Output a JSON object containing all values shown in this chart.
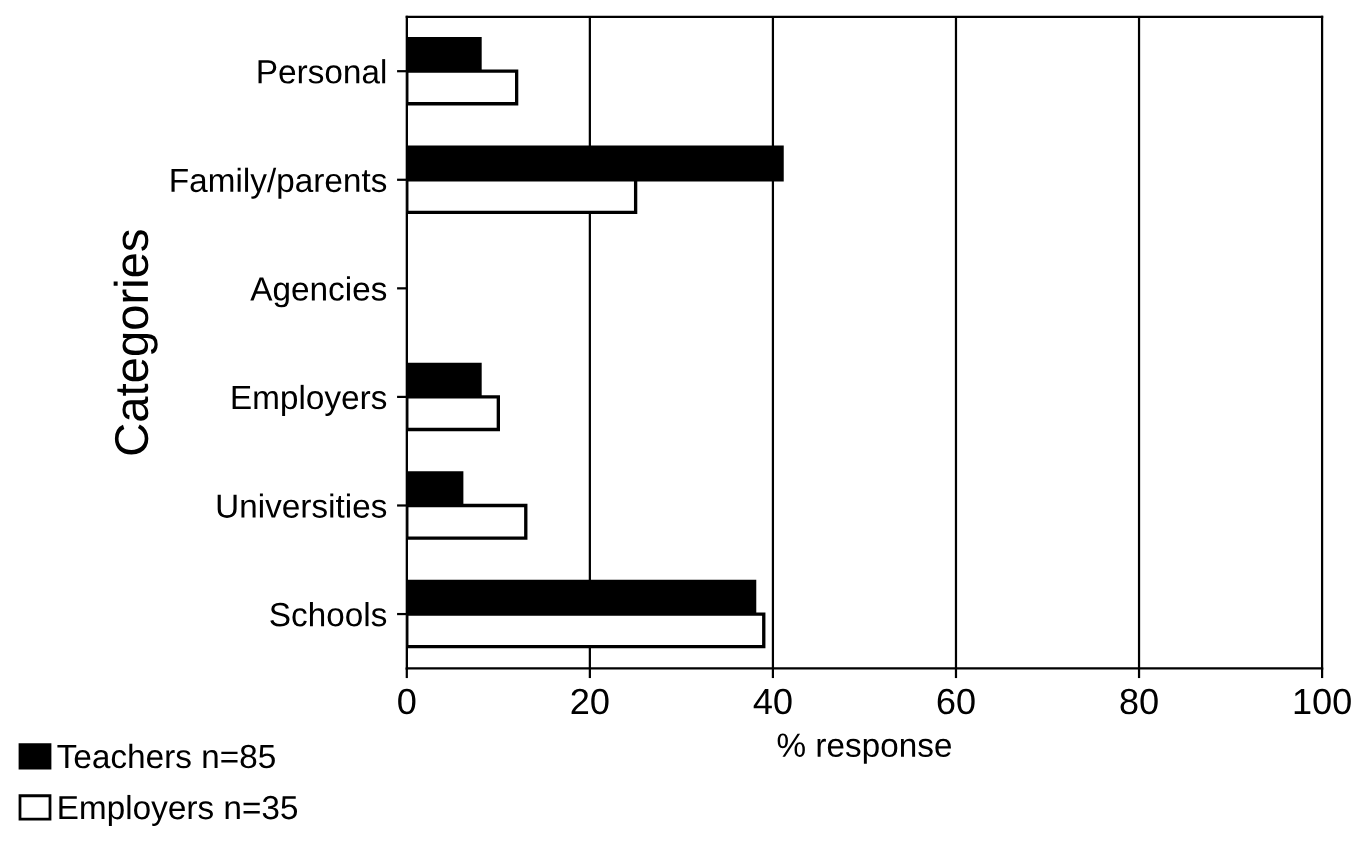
{
  "chart_data": {
    "type": "bar",
    "orientation": "horizontal",
    "xlabel": "% response",
    "ylabel": "Categories",
    "categories": [
      "Personal",
      "Family/parents",
      "Agencies",
      "Employers",
      "Universities",
      "Schools"
    ],
    "series": [
      {
        "name": "Teachers n=85",
        "color": "#000000",
        "values": [
          8,
          41,
          null,
          8,
          6,
          38
        ]
      },
      {
        "name": "Employers n=35",
        "color": "#ffffff",
        "values": [
          12,
          25,
          null,
          10,
          13,
          39
        ]
      }
    ],
    "xlim": [
      0,
      100
    ],
    "xticks": [
      0,
      20,
      40,
      60,
      80,
      100
    ],
    "grid": "x",
    "legend": "bottom left"
  }
}
